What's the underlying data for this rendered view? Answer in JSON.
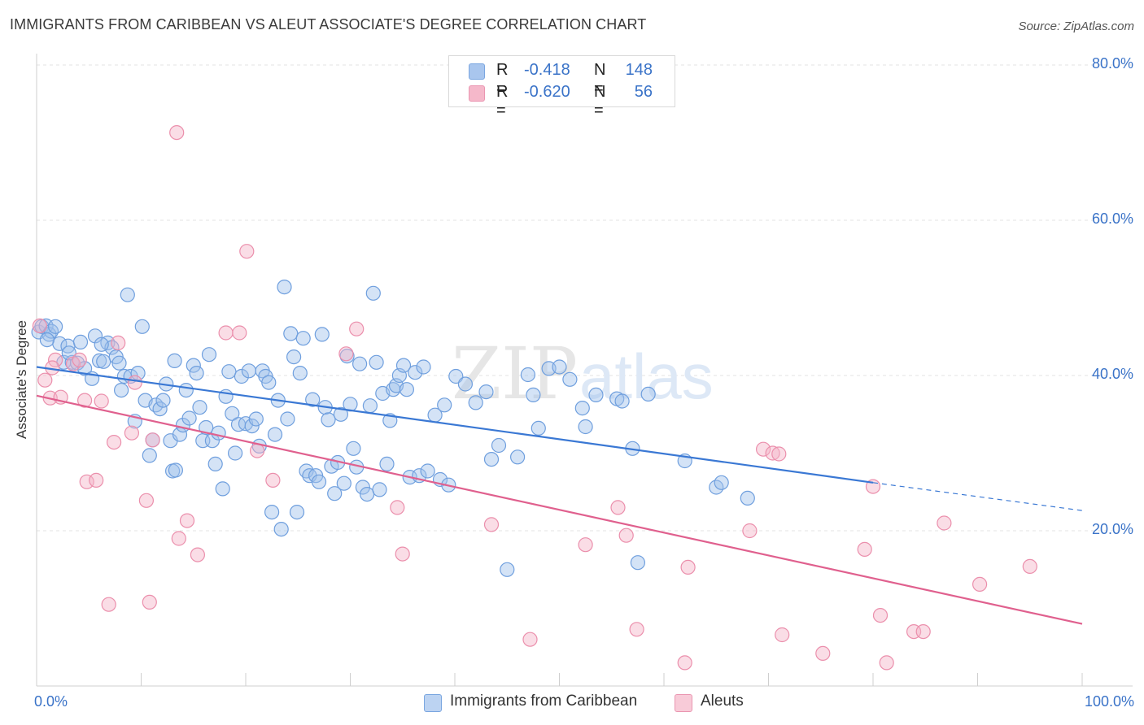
{
  "title": "IMMIGRANTS FROM CARIBBEAN VS ALEUT ASSOCIATE'S DEGREE CORRELATION CHART",
  "source": "Source: ZipAtlas.com",
  "watermark": {
    "zip": "ZIP",
    "atlas": "atlas"
  },
  "legend_top": [
    {
      "r_label": "R =",
      "r_value": "-0.418",
      "n_label": "N =",
      "n_value": "148",
      "color": "#a9c6ee"
    },
    {
      "r_label": "R =",
      "r_value": "-0.620",
      "n_label": "N =",
      "n_value": "56",
      "color": "#f5b8ca"
    }
  ],
  "colors": {
    "blue_fill": "rgba(160,192,236,0.45)",
    "blue_stroke": "#6f9fde",
    "blue_line": "#3a78d4",
    "pink_fill": "rgba(245,180,200,0.45)",
    "pink_stroke": "#eb8fac",
    "pink_line": "#e0608e",
    "grid": "#e3e3e3",
    "tick_text": "#3a73c8"
  },
  "chart_data": {
    "type": "scatter",
    "xlabel": "",
    "ylabel": "Associate's Degree",
    "xlim": [
      0,
      100
    ],
    "ylim": [
      0,
      80
    ],
    "x_tick_labels": [
      {
        "value": 0,
        "label": "0.0%"
      },
      {
        "value": 100,
        "label": "100.0%"
      }
    ],
    "y_tick_labels": [
      {
        "value": 20,
        "label": "20.0%"
      },
      {
        "value": 40,
        "label": "40.0%"
      },
      {
        "value": 60,
        "label": "60.0%"
      },
      {
        "value": 80,
        "label": "80.0%"
      }
    ],
    "grid": true,
    "legend": "bottom",
    "series": [
      {
        "name": "Immigrants from Caribbean",
        "color": "#a9c6ee",
        "trend": {
          "x0": 0,
          "y0": 41.1,
          "x1": 80,
          "y1": 26.2,
          "dashed_to_x": 100,
          "dashed_to_y": 22.6
        },
        "points": [
          [
            0.2,
            45.6
          ],
          [
            0.5,
            46.3
          ],
          [
            0.9,
            46.4
          ],
          [
            1.2,
            45.3
          ],
          [
            1.4,
            45.7
          ],
          [
            1.8,
            46.3
          ],
          [
            2.2,
            44.1
          ],
          [
            2.6,
            41.7
          ],
          [
            3.0,
            43.8
          ],
          [
            3.4,
            41.7
          ],
          [
            3.9,
            41.6
          ],
          [
            4.2,
            44.3
          ],
          [
            4.6,
            40.9
          ],
          [
            5.3,
            39.6
          ],
          [
            5.6,
            45.1
          ],
          [
            6.0,
            41.9
          ],
          [
            6.4,
            41.8
          ],
          [
            6.8,
            44.2
          ],
          [
            7.2,
            43.6
          ],
          [
            7.6,
            42.4
          ],
          [
            7.9,
            41.6
          ],
          [
            8.1,
            38.1
          ],
          [
            8.4,
            39.9
          ],
          [
            8.7,
            50.4
          ],
          [
            9.0,
            39.9
          ],
          [
            9.4,
            34.1
          ],
          [
            9.7,
            40.3
          ],
          [
            10.1,
            46.3
          ],
          [
            10.4,
            36.8
          ],
          [
            10.8,
            29.7
          ],
          [
            11.1,
            31.7
          ],
          [
            11.4,
            36.2
          ],
          [
            11.8,
            35.7
          ],
          [
            12.1,
            36.8
          ],
          [
            12.4,
            38.9
          ],
          [
            12.8,
            31.6
          ],
          [
            13.0,
            27.7
          ],
          [
            13.3,
            27.8
          ],
          [
            13.7,
            32.4
          ],
          [
            14.0,
            33.6
          ],
          [
            14.3,
            38.1
          ],
          [
            14.6,
            34.5
          ],
          [
            15.0,
            41.3
          ],
          [
            15.3,
            40.3
          ],
          [
            15.6,
            35.9
          ],
          [
            15.9,
            31.6
          ],
          [
            16.2,
            33.3
          ],
          [
            16.5,
            42.7
          ],
          [
            16.8,
            31.6
          ],
          [
            17.1,
            28.6
          ],
          [
            17.4,
            32.6
          ],
          [
            17.8,
            25.4
          ],
          [
            18.1,
            37.3
          ],
          [
            18.4,
            40.5
          ],
          [
            18.7,
            35.1
          ],
          [
            19.0,
            30.0
          ],
          [
            19.3,
            33.7
          ],
          [
            19.6,
            39.9
          ],
          [
            20.0,
            33.8
          ],
          [
            20.3,
            40.6
          ],
          [
            20.6,
            33.5
          ],
          [
            21.0,
            34.4
          ],
          [
            21.3,
            30.9
          ],
          [
            21.6,
            40.6
          ],
          [
            21.9,
            39.9
          ],
          [
            22.2,
            39.1
          ],
          [
            22.5,
            22.4
          ],
          [
            22.8,
            32.4
          ],
          [
            23.1,
            36.8
          ],
          [
            23.4,
            20.2
          ],
          [
            23.7,
            51.4
          ],
          [
            24.0,
            34.4
          ],
          [
            24.3,
            45.4
          ],
          [
            24.6,
            42.4
          ],
          [
            24.9,
            22.4
          ],
          [
            25.2,
            40.3
          ],
          [
            25.5,
            44.8
          ],
          [
            25.8,
            27.7
          ],
          [
            26.1,
            27.1
          ],
          [
            26.4,
            36.9
          ],
          [
            26.7,
            27.1
          ],
          [
            27.0,
            26.3
          ],
          [
            27.3,
            45.3
          ],
          [
            27.6,
            35.9
          ],
          [
            27.9,
            34.3
          ],
          [
            28.2,
            28.3
          ],
          [
            28.5,
            24.8
          ],
          [
            28.8,
            28.8
          ],
          [
            29.1,
            35.0
          ],
          [
            29.4,
            26.1
          ],
          [
            29.7,
            42.5
          ],
          [
            30.0,
            36.3
          ],
          [
            30.3,
            30.6
          ],
          [
            30.6,
            28.2
          ],
          [
            30.9,
            41.5
          ],
          [
            31.2,
            25.6
          ],
          [
            31.6,
            24.7
          ],
          [
            31.9,
            36.1
          ],
          [
            32.2,
            50.6
          ],
          [
            32.5,
            41.7
          ],
          [
            32.8,
            25.3
          ],
          [
            33.1,
            37.7
          ],
          [
            33.5,
            28.6
          ],
          [
            33.8,
            34.2
          ],
          [
            34.1,
            38.2
          ],
          [
            34.4,
            38.7
          ],
          [
            34.7,
            40.0
          ],
          [
            35.1,
            41.3
          ],
          [
            35.4,
            38.2
          ],
          [
            35.7,
            26.9
          ],
          [
            36.2,
            40.4
          ],
          [
            36.6,
            27.1
          ],
          [
            37.0,
            41.1
          ],
          [
            37.4,
            27.7
          ],
          [
            38.1,
            34.9
          ],
          [
            38.6,
            26.6
          ],
          [
            39.0,
            36.2
          ],
          [
            39.4,
            25.9
          ],
          [
            40.1,
            39.9
          ],
          [
            41.0,
            38.9
          ],
          [
            42.0,
            36.5
          ],
          [
            43.0,
            37.9
          ],
          [
            43.5,
            29.2
          ],
          [
            44.2,
            31.0
          ],
          [
            45.0,
            15.0
          ],
          [
            46.0,
            29.5
          ],
          [
            47.0,
            40.1
          ],
          [
            47.5,
            37.5
          ],
          [
            48.0,
            33.2
          ],
          [
            49.0,
            40.9
          ],
          [
            50.0,
            41.1
          ],
          [
            51.0,
            39.5
          ],
          [
            52.2,
            35.8
          ],
          [
            52.5,
            33.4
          ],
          [
            53.5,
            37.5
          ],
          [
            55.5,
            37.0
          ],
          [
            56.0,
            36.7
          ],
          [
            57.0,
            30.6
          ],
          [
            57.5,
            15.9
          ],
          [
            58.5,
            37.6
          ],
          [
            62.0,
            29.0
          ],
          [
            65.0,
            25.6
          ],
          [
            65.5,
            26.2
          ],
          [
            68.0,
            24.2
          ],
          [
            13.2,
            41.9
          ],
          [
            6.2,
            44.0
          ],
          [
            3.1,
            42.9
          ],
          [
            1.0,
            44.6
          ]
        ]
      },
      {
        "name": "Aleuts",
        "color": "#f5b8ca",
        "trend": {
          "x0": 0,
          "y0": 37.4,
          "x1": 100,
          "y1": 8.0
        },
        "points": [
          [
            0.3,
            46.4
          ],
          [
            0.8,
            39.4
          ],
          [
            1.3,
            37.1
          ],
          [
            1.8,
            42.0
          ],
          [
            2.3,
            37.2
          ],
          [
            3.5,
            41.5
          ],
          [
            4.1,
            42.0
          ],
          [
            4.6,
            36.8
          ],
          [
            4.8,
            26.3
          ],
          [
            5.7,
            26.5
          ],
          [
            6.2,
            36.7
          ],
          [
            6.9,
            10.5
          ],
          [
            7.4,
            31.4
          ],
          [
            7.8,
            44.2
          ],
          [
            9.1,
            32.6
          ],
          [
            9.4,
            39.1
          ],
          [
            10.5,
            23.9
          ],
          [
            10.8,
            10.8
          ],
          [
            11.1,
            31.7
          ],
          [
            13.4,
            71.3
          ],
          [
            13.6,
            19.0
          ],
          [
            14.4,
            21.3
          ],
          [
            15.4,
            16.9
          ],
          [
            18.1,
            45.5
          ],
          [
            19.4,
            45.5
          ],
          [
            20.1,
            56.0
          ],
          [
            21.1,
            30.3
          ],
          [
            22.6,
            26.5
          ],
          [
            29.6,
            42.8
          ],
          [
            30.6,
            46.0
          ],
          [
            34.5,
            23.0
          ],
          [
            35.0,
            17.0
          ],
          [
            43.5,
            20.8
          ],
          [
            47.2,
            6.0
          ],
          [
            52.5,
            18.2
          ],
          [
            55.6,
            23.0
          ],
          [
            56.4,
            19.4
          ],
          [
            57.4,
            7.3
          ],
          [
            62.0,
            3.0
          ],
          [
            62.3,
            15.3
          ],
          [
            68.2,
            20.0
          ],
          [
            69.5,
            30.5
          ],
          [
            70.4,
            30.0
          ],
          [
            71.0,
            29.9
          ],
          [
            71.3,
            6.6
          ],
          [
            75.2,
            4.2
          ],
          [
            79.2,
            17.6
          ],
          [
            80.0,
            25.7
          ],
          [
            80.7,
            9.1
          ],
          [
            81.3,
            3.0
          ],
          [
            83.9,
            7.0
          ],
          [
            84.8,
            7.0
          ],
          [
            86.8,
            21.0
          ],
          [
            90.2,
            13.1
          ],
          [
            95.0,
            15.4
          ],
          [
            1.5,
            41.0
          ]
        ]
      }
    ]
  }
}
